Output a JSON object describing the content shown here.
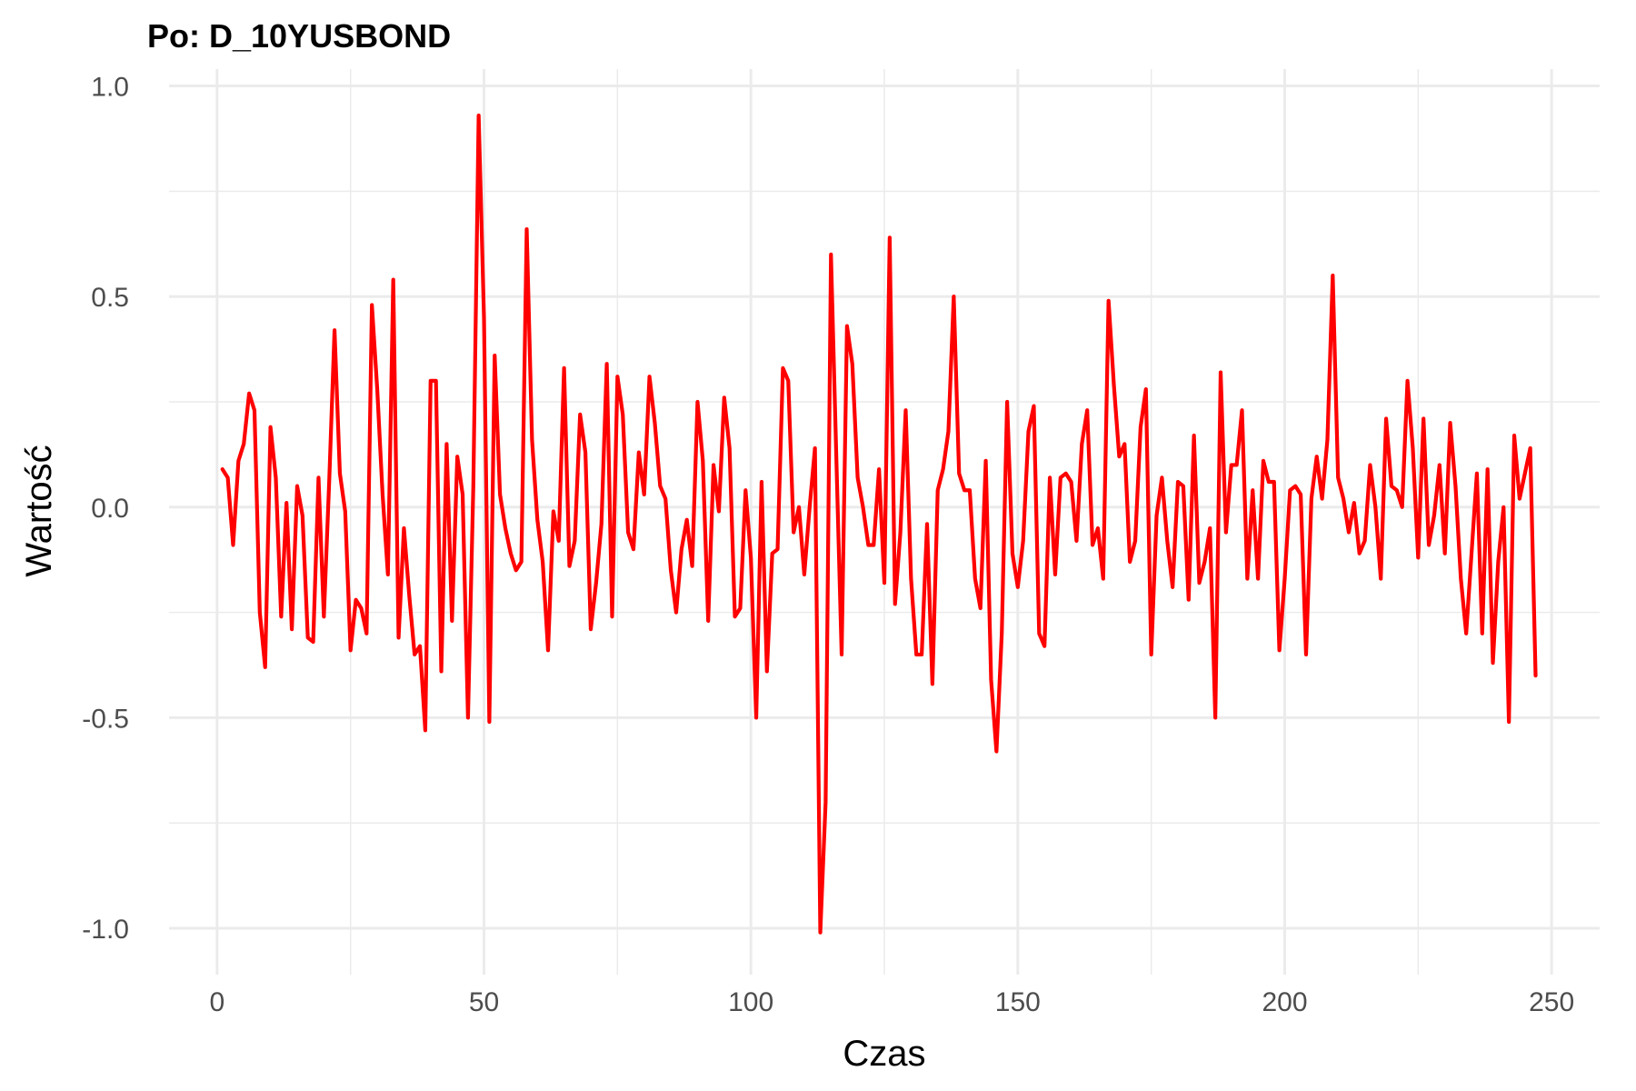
{
  "chart_data": {
    "type": "line",
    "title": "Po: D_10YUSBOND",
    "xlabel": "Czas",
    "ylabel": "Wartość",
    "xlim": [
      -9,
      259
    ],
    "ylim": [
      -1.11,
      1.04
    ],
    "x_ticks": [
      0,
      50,
      100,
      150,
      200,
      250
    ],
    "x_tick_labels": [
      "0",
      "50",
      "100",
      "150",
      "200",
      "250"
    ],
    "x_minor_ticks": [
      25,
      75,
      125,
      175,
      225
    ],
    "y_ticks": [
      -1.0,
      -0.5,
      0.0,
      0.5,
      1.0
    ],
    "y_tick_labels": [
      "-1.0",
      "-0.5",
      "0.0",
      "0.5",
      "1.0"
    ],
    "y_minor_ticks": [
      -0.75,
      -0.25,
      0.25,
      0.75
    ],
    "grid": true,
    "legend": "none",
    "line_color": "#ff0000",
    "series": [
      {
        "x": [
          1,
          2,
          3,
          4,
          5,
          6,
          7,
          8,
          9,
          10,
          11,
          12,
          13,
          14,
          15,
          16,
          17,
          18,
          19,
          20,
          21,
          22,
          23,
          24,
          25,
          26,
          27,
          28,
          29,
          30,
          31,
          32,
          33,
          34,
          35,
          36,
          37,
          38,
          39,
          40,
          41,
          42,
          43,
          44,
          45,
          46,
          47,
          48,
          49,
          50,
          51,
          52,
          53,
          54,
          55,
          56,
          57,
          58,
          59,
          60,
          61,
          62,
          63,
          64,
          65,
          66,
          67,
          68,
          69,
          70,
          71,
          72,
          73,
          74,
          75,
          76,
          77,
          78,
          79,
          80,
          81,
          82,
          83,
          84,
          85,
          86,
          87,
          88,
          89,
          90,
          91,
          92,
          93,
          94,
          95,
          96,
          97,
          98,
          99,
          100,
          101,
          102,
          103,
          104,
          105,
          106,
          107,
          108,
          109,
          110,
          111,
          112,
          113,
          114,
          115,
          116,
          117,
          118,
          119,
          120,
          121,
          122,
          123,
          124,
          125,
          126,
          127,
          128,
          129,
          130,
          131,
          132,
          133,
          134,
          135,
          136,
          137,
          138,
          139,
          140,
          141,
          142,
          143,
          144,
          145,
          146,
          147,
          148,
          149,
          150,
          151,
          152,
          153,
          154,
          155,
          156,
          157,
          158,
          159,
          160,
          161,
          162,
          163,
          164,
          165,
          166,
          167,
          168,
          169,
          170,
          171,
          172,
          173,
          174,
          175,
          176,
          177,
          178,
          179,
          180,
          181,
          182,
          183,
          184,
          185,
          186,
          187,
          188,
          189,
          190,
          191,
          192,
          193,
          194,
          195,
          196,
          197,
          198,
          199,
          200,
          201,
          202,
          203,
          204,
          205,
          206,
          207,
          208,
          209,
          210,
          211,
          212,
          213,
          214,
          215,
          216,
          217,
          218,
          219,
          220,
          221,
          222,
          223,
          224,
          225,
          226,
          227,
          228,
          229,
          230,
          231,
          232,
          233,
          234,
          235,
          236,
          237,
          238,
          239,
          240,
          241,
          242,
          243,
          244,
          245,
          246,
          247
        ],
        "values": [
          0.09,
          0.07,
          -0.09,
          0.11,
          0.15,
          0.27,
          0.23,
          -0.25,
          -0.38,
          0.19,
          0.07,
          -0.26,
          0.01,
          -0.29,
          0.05,
          -0.02,
          -0.31,
          -0.32,
          0.07,
          -0.26,
          0.06,
          0.42,
          0.08,
          -0.01,
          -0.34,
          -0.22,
          -0.24,
          -0.3,
          0.48,
          0.28,
          0.03,
          -0.16,
          0.54,
          -0.31,
          -0.05,
          -0.21,
          -0.35,
          -0.33,
          -0.53,
          0.3,
          0.3,
          -0.39,
          0.15,
          -0.27,
          0.12,
          0.03,
          -0.5,
          0.05,
          0.93,
          0.45,
          -0.51,
          0.36,
          0.03,
          -0.05,
          -0.11,
          -0.15,
          -0.13,
          0.66,
          0.16,
          -0.03,
          -0.13,
          -0.34,
          -0.01,
          -0.08,
          0.33,
          -0.14,
          -0.08,
          0.22,
          0.13,
          -0.29,
          -0.18,
          -0.04,
          0.34,
          -0.26,
          0.31,
          0.22,
          -0.06,
          -0.1,
          0.13,
          0.03,
          0.31,
          0.2,
          0.05,
          0.02,
          -0.15,
          -0.25,
          -0.1,
          -0.03,
          -0.14,
          0.25,
          0.11,
          -0.27,
          0.1,
          -0.01,
          0.26,
          0.14,
          -0.26,
          -0.24,
          0.04,
          -0.12,
          -0.5,
          0.06,
          -0.39,
          -0.11,
          -0.1,
          0.33,
          0.3,
          -0.06,
          0.0,
          -0.16,
          0.0,
          0.14,
          -1.01,
          -0.7,
          0.6,
          0.12,
          -0.35,
          0.43,
          0.34,
          0.07,
          0.0,
          -0.09,
          -0.09,
          0.09,
          -0.18,
          0.64,
          -0.23,
          -0.06,
          0.23,
          -0.17,
          -0.35,
          -0.35,
          -0.04,
          -0.42,
          0.04,
          0.09,
          0.18,
          0.5,
          0.08,
          0.04,
          0.04,
          -0.17,
          -0.24,
          0.11,
          -0.41,
          -0.58,
          -0.3,
          0.25,
          -0.11,
          -0.19,
          -0.08,
          0.18,
          0.24,
          -0.3,
          -0.33,
          0.07,
          -0.16,
          0.07,
          0.08,
          0.06,
          -0.08,
          0.15,
          0.23,
          -0.09,
          -0.05,
          -0.17,
          0.49,
          0.29,
          0.12,
          0.15,
          -0.13,
          -0.08,
          0.19,
          0.28,
          -0.35,
          -0.02,
          0.07,
          -0.08,
          -0.19,
          0.06,
          0.05,
          -0.22,
          0.17,
          -0.18,
          -0.13,
          -0.05,
          -0.5,
          0.32,
          -0.06,
          0.1,
          0.1,
          0.23,
          -0.17,
          0.04,
          -0.17,
          0.11,
          0.06,
          0.06,
          -0.34,
          -0.17,
          0.04,
          0.05,
          0.03,
          -0.35,
          0.02,
          0.12,
          0.02,
          0.16,
          0.55,
          0.07,
          0.02,
          -0.06,
          0.01,
          -0.11,
          -0.08,
          0.1,
          0.0,
          -0.17,
          0.21,
          0.05,
          0.04,
          0.0,
          0.3,
          0.14,
          -0.12,
          0.21,
          -0.09,
          -0.02,
          0.1,
          -0.11,
          0.2,
          0.05,
          -0.17,
          -0.3,
          -0.11,
          0.08,
          -0.3,
          0.09,
          -0.37,
          -0.13,
          0.0,
          -0.51,
          0.17,
          0.02,
          0.08,
          0.14,
          -0.4
        ]
      }
    ]
  }
}
